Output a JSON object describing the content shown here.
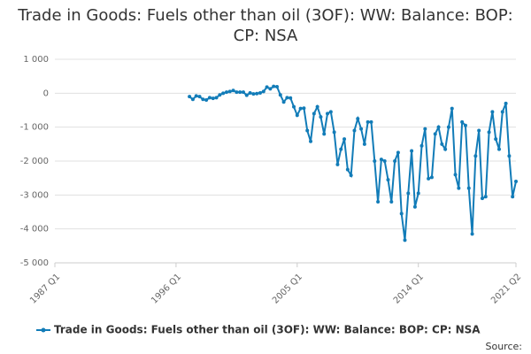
{
  "chart_data": {
    "type": "line",
    "title": "Trade in Goods: Fuels other than oil (3OF): WW: Balance: BOP: CP: NSA",
    "source": "Source:",
    "categories": [
      "1987 Q1",
      null,
      null,
      null,
      null,
      null,
      null,
      null,
      null,
      null,
      null,
      null,
      null,
      null,
      null,
      null,
      null,
      null,
      null,
      null,
      null,
      null,
      null,
      null,
      null,
      null,
      null,
      null,
      null,
      null,
      null,
      null,
      null,
      null,
      null,
      null,
      "1996 Q1",
      null,
      null,
      null,
      null,
      null,
      null,
      null,
      null,
      null,
      null,
      null,
      null,
      null,
      null,
      null,
      null,
      null,
      null,
      null,
      null,
      null,
      null,
      null,
      null,
      null,
      null,
      null,
      null,
      null,
      null,
      null,
      null,
      null,
      null,
      null,
      "2005 Q1",
      null,
      null,
      null,
      null,
      null,
      null,
      null,
      null,
      null,
      null,
      null,
      null,
      null,
      null,
      null,
      null,
      null,
      null,
      null,
      null,
      null,
      null,
      null,
      null,
      null,
      null,
      null,
      null,
      null,
      null,
      null,
      null,
      null,
      null,
      null,
      "2014 Q1",
      null,
      null,
      null,
      null,
      null,
      null,
      null,
      null,
      null,
      null,
      null,
      null,
      null,
      null,
      null,
      null,
      null,
      null,
      null,
      null,
      null,
      null,
      null,
      null,
      null,
      null,
      null,
      null,
      "2021 Q2"
    ],
    "series": [
      {
        "name": "Trade in Goods: Fuels other than oil (3OF): WW: Balance: BOP: CP: NSA",
        "color": "#127cb8",
        "values": [
          null,
          null,
          null,
          null,
          null,
          null,
          null,
          null,
          null,
          null,
          null,
          null,
          null,
          null,
          null,
          null,
          null,
          null,
          null,
          null,
          null,
          null,
          null,
          null,
          null,
          null,
          null,
          null,
          null,
          null,
          null,
          null,
          null,
          null,
          null,
          null,
          null,
          null,
          null,
          null,
          -100,
          -180,
          -80,
          -100,
          -180,
          -200,
          -130,
          -150,
          -130,
          -50,
          0,
          30,
          50,
          80,
          30,
          30,
          30,
          -60,
          10,
          -20,
          -10,
          10,
          50,
          180,
          130,
          200,
          190,
          -50,
          -260,
          -130,
          -140,
          -400,
          -650,
          -450,
          -440,
          -1100,
          -1420,
          -600,
          -400,
          -700,
          -1200,
          -600,
          -550,
          -1150,
          -2100,
          -1650,
          -1350,
          -2250,
          -2420,
          -1100,
          -750,
          -1050,
          -1500,
          -850,
          -850,
          -2000,
          -3200,
          -1950,
          -2000,
          -2550,
          -3200,
          -2000,
          -1750,
          -3550,
          -4330,
          -2950,
          -1700,
          -3350,
          -2950,
          -1550,
          -1050,
          -2520,
          -2480,
          -1200,
          -1000,
          -1500,
          -1650,
          -1000,
          -450,
          -2400,
          -2800,
          -850,
          -950,
          -2800,
          -4150,
          -1850,
          -1100,
          -3100,
          -3050,
          -1150,
          -550,
          -1350,
          -1650,
          -550,
          -300,
          -1850,
          -3050,
          -2600
        ]
      }
    ],
    "ylim": [
      -5000,
      1000
    ],
    "yticks": [
      {
        "value": -5000,
        "label": "-5 000"
      },
      {
        "value": -4000,
        "label": "-4 000"
      },
      {
        "value": -3000,
        "label": "-3 000"
      },
      {
        "value": -2000,
        "label": "-2 000"
      },
      {
        "value": -1000,
        "label": "-1 000"
      },
      0,
      {
        "value": 1000,
        "label": "1 000"
      }
    ],
    "grid": true,
    "legend": "bottom"
  }
}
